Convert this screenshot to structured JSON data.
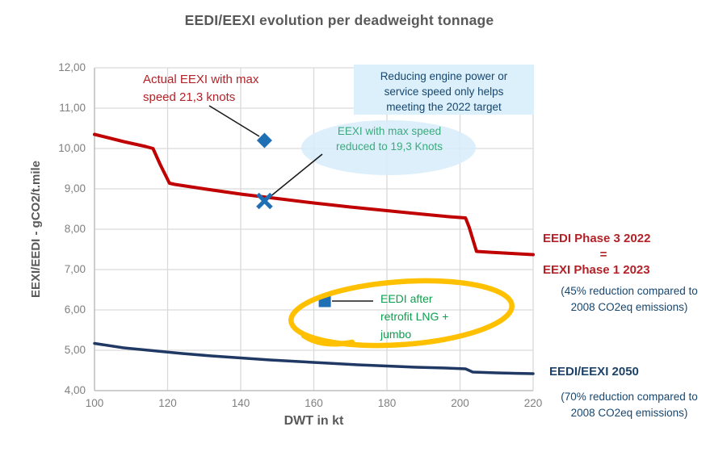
{
  "title": "EEDI/EEXI evolution per deadweight tonnage",
  "colors": {
    "red_line": "#C00000",
    "navy_line": "#1F3864",
    "marker_blue": "#1F6FB5",
    "highlight_yellow": "#FFC000",
    "green_text_speed_reduced": "#3BAB7E",
    "green_text_retrofit": "#0CA04E",
    "red_text": "#B22228",
    "navy_text": "#17466F",
    "title_gray": "#595959",
    "tick_gray": "#7F7F7F",
    "gridline": "#D9D9D9",
    "callout_background": "#DBF0FA",
    "ellipse_background": "#D7EDF9"
  },
  "chart_data": {
    "type": "line",
    "title": "EEDI/EEXI evolution per deadweight tonnage",
    "xlabel": "DWT in kt",
    "ylabel": "EEXI/EEDI - gCO2/t.mile",
    "xlim": [
      100,
      220
    ],
    "ylim": [
      4,
      12
    ],
    "grid": true,
    "x_ticks": [
      "100",
      "120",
      "140",
      "160",
      "180",
      "200",
      "220"
    ],
    "y_ticks": [
      "4,00",
      "5,00",
      "6,00",
      "7,00",
      "8,00",
      "9,00",
      "10,00",
      "11,00",
      "12,00"
    ],
    "series": [
      {
        "name": "EEDI Phase 3 2022 = EEXI Phase 1 2023 (45% reduction compared to 2008 CO2eq emissions)",
        "color": "#C00000",
        "width": 4,
        "points": [
          [
            100,
            10.35
          ],
          [
            108,
            10.17
          ],
          [
            114,
            10.05
          ],
          [
            116,
            10.0
          ],
          [
            118,
            9.6
          ],
          [
            120.5,
            9.14
          ],
          [
            122,
            9.11
          ],
          [
            130,
            9.0
          ],
          [
            140,
            8.87
          ],
          [
            150,
            8.76
          ],
          [
            160,
            8.65
          ],
          [
            170,
            8.55
          ],
          [
            180,
            8.46
          ],
          [
            190,
            8.37
          ],
          [
            197,
            8.31
          ],
          [
            201.5,
            8.28
          ],
          [
            202.5,
            8.05
          ],
          [
            204.5,
            7.45
          ],
          [
            208,
            7.43
          ],
          [
            214,
            7.4
          ],
          [
            220,
            7.37
          ]
        ]
      },
      {
        "name": "EEDI/EEXI 2050 (70% reduction compared to 2008 CO2eq emissions)",
        "color": "#1F3864",
        "width": 3.5,
        "points": [
          [
            100,
            5.17
          ],
          [
            108,
            5.06
          ],
          [
            116,
            4.99
          ],
          [
            124,
            4.92
          ],
          [
            132,
            4.86
          ],
          [
            140,
            4.81
          ],
          [
            148,
            4.76
          ],
          [
            156,
            4.72
          ],
          [
            164,
            4.68
          ],
          [
            172,
            4.64
          ],
          [
            180,
            4.61
          ],
          [
            188,
            4.58
          ],
          [
            196,
            4.56
          ],
          [
            201.5,
            4.54
          ],
          [
            203.5,
            4.46
          ],
          [
            210,
            4.44
          ],
          [
            220,
            4.42
          ]
        ]
      }
    ],
    "markers": [
      {
        "shape": "diamond",
        "x": 146.5,
        "y": 10.2,
        "color": "#1F6FB5",
        "label": "Actual EEXI with max speed 21,3 knots"
      },
      {
        "shape": "x",
        "x": 146.5,
        "y": 8.7,
        "color": "#1F6FB5",
        "label": "EEXI with max speed reduced to 19,3 Knots"
      },
      {
        "shape": "square",
        "x": 163,
        "y": 6.22,
        "color": "#1F6FB5",
        "label": "EEDI after retrofit LNG + jumbo"
      }
    ]
  },
  "annotations": {
    "actual_eexi": "Actual EEXI with max\nspeed 21,3 knots",
    "callout": "Reducing engine power or\nservice speed only helps\nmeeting the 2022 target",
    "speed_reduced": "EEXI with max speed\nreduced to 19,3 Knots",
    "retrofit": "EEDI after\nretrofit LNG +\njumbo"
  },
  "legend": {
    "red_label_line1": "EEDI Phase 3 2022",
    "red_label_equals": "=",
    "red_label_line2": "EEXI Phase 1 2023",
    "red_sublabel": "(45% reduction compared to\n2008 CO2eq emissions)",
    "navy_label": "EEDI/EEXI 2050",
    "navy_sublabel": "(70% reduction compared to\n2008 CO2eq emissions)"
  }
}
